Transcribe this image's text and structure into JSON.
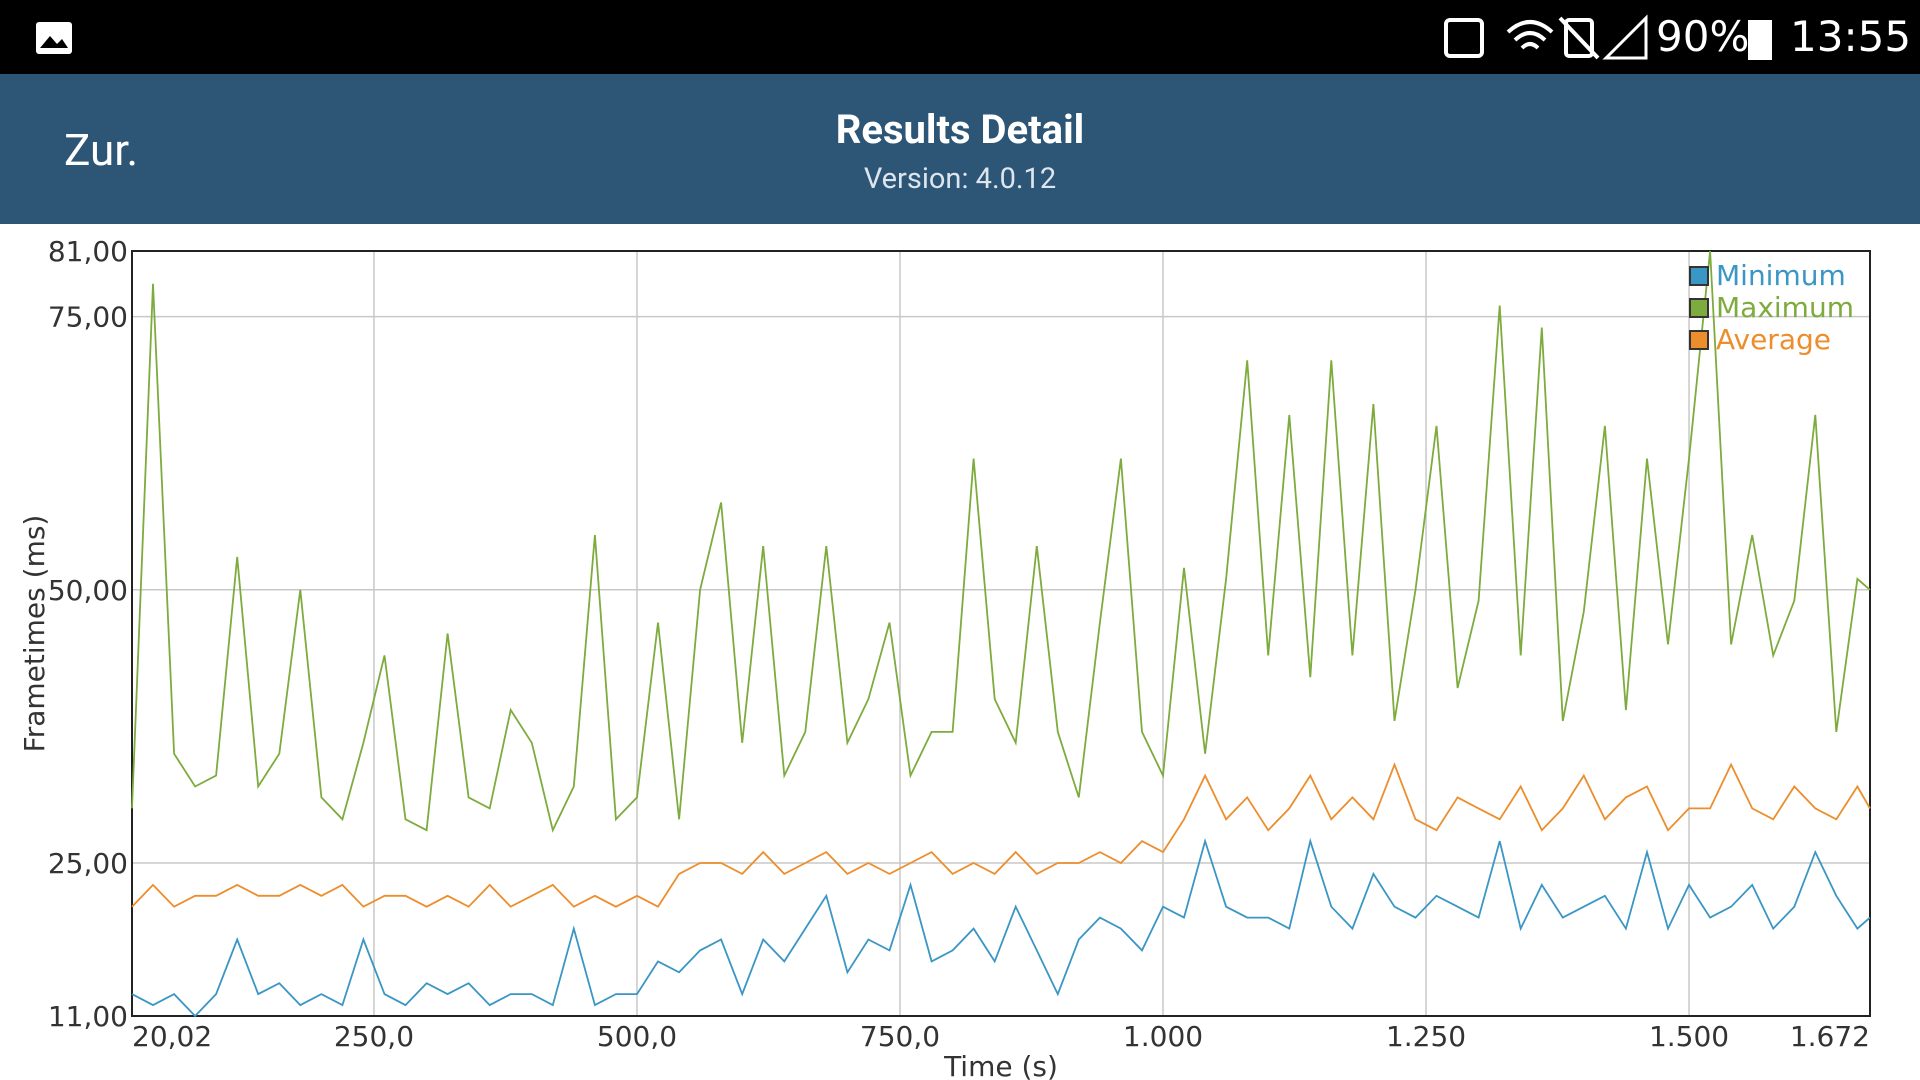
{
  "status_bar": {
    "battery": "90%",
    "time": "13:55"
  },
  "header": {
    "back": "Zur.",
    "title": "Results Detail",
    "subtitle": "Version: 4.0.12"
  },
  "chart_data": {
    "type": "line",
    "x_label": "Time (s)",
    "y_label": "Frametimes (ms)",
    "x": [
      20.02,
      40,
      60,
      80,
      100,
      120,
      140,
      160,
      180,
      200,
      220,
      240,
      260,
      280,
      300,
      320,
      340,
      360,
      380,
      400,
      420,
      440,
      460,
      480,
      500,
      520,
      540,
      560,
      580,
      600,
      620,
      640,
      660,
      680,
      700,
      720,
      740,
      760,
      780,
      800,
      820,
      840,
      860,
      880,
      900,
      920,
      940,
      960,
      980,
      1000,
      1020,
      1040,
      1060,
      1080,
      1100,
      1120,
      1140,
      1160,
      1180,
      1200,
      1220,
      1240,
      1260,
      1280,
      1300,
      1320,
      1340,
      1360,
      1380,
      1400,
      1420,
      1440,
      1460,
      1480,
      1500,
      1520,
      1540,
      1560,
      1580,
      1600,
      1620,
      1640,
      1660,
      1672
    ],
    "series": [
      {
        "name": "Minimum",
        "color": "#3a96c4",
        "values": [
          13,
          12,
          13,
          11,
          13,
          18,
          13,
          14,
          12,
          13,
          12,
          18,
          13,
          12,
          14,
          13,
          14,
          12,
          13,
          13,
          12,
          19,
          12,
          13,
          13,
          16,
          15,
          17,
          18,
          13,
          18,
          16,
          19,
          22,
          15,
          18,
          17,
          23,
          16,
          17,
          19,
          16,
          21,
          17,
          13,
          18,
          20,
          19,
          17,
          21,
          20,
          27,
          21,
          20,
          20,
          19,
          27,
          21,
          19,
          24,
          21,
          20,
          22,
          21,
          20,
          27,
          19,
          23,
          20,
          21,
          22,
          19,
          26,
          19,
          23,
          20,
          21,
          23,
          19,
          21,
          26,
          22,
          19,
          20
        ]
      },
      {
        "name": "Maximum",
        "color": "#7dab3d",
        "values": [
          30,
          78,
          35,
          32,
          33,
          53,
          32,
          35,
          50,
          31,
          29,
          36,
          44,
          29,
          28,
          46,
          31,
          30,
          39,
          36,
          28,
          32,
          55,
          29,
          31,
          47,
          29,
          50,
          58,
          36,
          54,
          33,
          37,
          54,
          36,
          40,
          47,
          33,
          37,
          37,
          62,
          40,
          36,
          54,
          37,
          31,
          47,
          62,
          37,
          33,
          52,
          35,
          51,
          71,
          44,
          66,
          42,
          71,
          44,
          67,
          38,
          50,
          65,
          41,
          49,
          76,
          44,
          74,
          38,
          48,
          65,
          39,
          62,
          45,
          62,
          81,
          45,
          55,
          44,
          49,
          66,
          37,
          51,
          50
        ]
      },
      {
        "name": "Average",
        "color": "#ec8e2c",
        "values": [
          21,
          23,
          21,
          22,
          22,
          23,
          22,
          22,
          23,
          22,
          23,
          21,
          22,
          22,
          21,
          22,
          21,
          23,
          21,
          22,
          23,
          21,
          22,
          21,
          22,
          21,
          24,
          25,
          25,
          24,
          26,
          24,
          25,
          26,
          24,
          25,
          24,
          25,
          26,
          24,
          25,
          24,
          26,
          24,
          25,
          25,
          26,
          25,
          27,
          26,
          29,
          33,
          29,
          31,
          28,
          30,
          33,
          29,
          31,
          29,
          34,
          29,
          28,
          31,
          30,
          29,
          32,
          28,
          30,
          33,
          29,
          31,
          32,
          28,
          30,
          30,
          34,
          30,
          29,
          32,
          30,
          29,
          32,
          30
        ]
      }
    ],
    "xlim": [
      20.02,
      1672
    ],
    "ylim": [
      11,
      81
    ],
    "xticks": [
      {
        "value": 20.02,
        "label": "20,02"
      },
      {
        "value": 250,
        "label": "250,0"
      },
      {
        "value": 500,
        "label": "500,0"
      },
      {
        "value": 750,
        "label": "750,0"
      },
      {
        "value": 1000,
        "label": "1.000"
      },
      {
        "value": 1250,
        "label": "1.250"
      },
      {
        "value": 1500,
        "label": "1.500"
      },
      {
        "value": 1672,
        "label": "1.672"
      }
    ],
    "yticks": [
      {
        "value": 11,
        "label": "11,00"
      },
      {
        "value": 25,
        "label": "25,00"
      },
      {
        "value": 50,
        "label": "50,00"
      },
      {
        "value": 75,
        "label": "75,00"
      },
      {
        "value": 81,
        "label": "81,00"
      }
    ],
    "grid": true,
    "legend": "upper right"
  }
}
